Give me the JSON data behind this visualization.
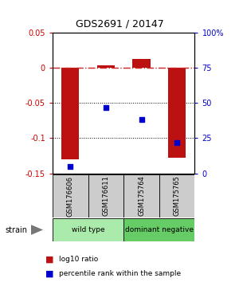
{
  "title": "GDS2691 / 20147",
  "samples": [
    "GSM176606",
    "GSM176611",
    "GSM175764",
    "GSM175765"
  ],
  "log10_ratio": [
    -0.13,
    0.003,
    0.012,
    -0.128
  ],
  "percentile_rank": [
    5,
    47,
    38,
    22
  ],
  "groups": [
    {
      "label": "wild type",
      "samples": [
        0,
        1
      ],
      "color": "#aaeaaa"
    },
    {
      "label": "dominant negative",
      "samples": [
        2,
        3
      ],
      "color": "#66cc66"
    }
  ],
  "group_label": "strain",
  "ylim_left": [
    -0.15,
    0.05
  ],
  "ylim_right": [
    0,
    100
  ],
  "bar_color": "#bb1111",
  "dot_color": "#0000cc",
  "bg_color": "#ffffff",
  "plot_bg": "#ffffff",
  "hline_color": "#cc2222",
  "tick_label_color_left": "#cc0000",
  "tick_label_color_right": "#0000cc",
  "left_ticks": [
    0.05,
    0,
    -0.05,
    -0.1,
    -0.15
  ],
  "right_ticks": [
    100,
    75,
    50,
    25,
    0
  ],
  "dotted_lines": [
    -0.05,
    -0.1
  ],
  "bar_width": 0.5,
  "sample_box_color": "#cccccc",
  "arrow_color": "#777777"
}
